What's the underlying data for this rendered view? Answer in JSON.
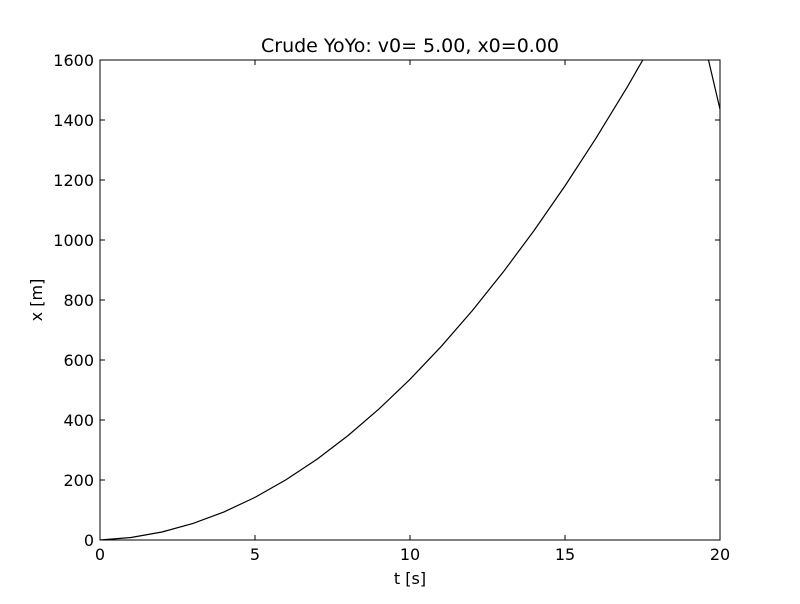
{
  "chart_data": {
    "type": "line",
    "title": "Crude YoYo: v0= 5.00, x0=0.00",
    "xlabel": "t [s]",
    "ylabel": "x [m]",
    "xlim": [
      0,
      20
    ],
    "ylim": [
      0,
      1600
    ],
    "xticks": [
      "0",
      "5",
      "10",
      "15",
      "20"
    ],
    "yticks": [
      "0",
      "200",
      "400",
      "600",
      "800",
      "1000",
      "1200",
      "1400",
      "1600"
    ],
    "grid": false,
    "legend": "none",
    "line_color": "#000000",
    "series": [
      {
        "x": [
          0,
          1,
          2,
          3,
          4,
          5,
          6,
          7,
          8,
          9,
          10,
          11,
          12,
          13,
          14,
          15,
          16,
          17,
          18,
          19,
          20
        ],
        "y": [
          0,
          8.3,
          26.7,
          55.1,
          93.6,
          142.1,
          200.7,
          269.3,
          348.0,
          436.8,
          535.6,
          644.4,
          763.3,
          892.3,
          1031.3,
          1180.4,
          1339.5,
          1508.7,
          1688.0,
          1877.3,
          1436.0
        ]
      }
    ]
  }
}
